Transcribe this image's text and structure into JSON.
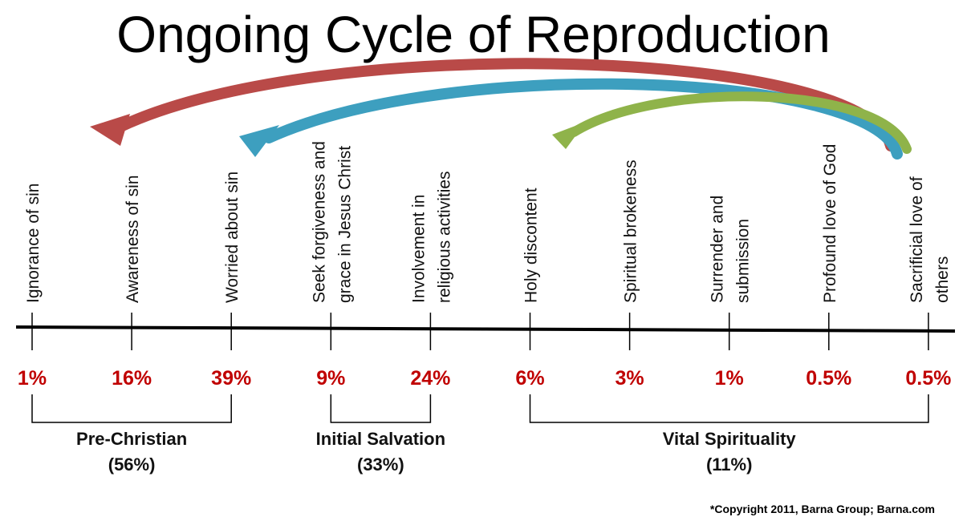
{
  "title": "Ongoing Cycle of Reproduction",
  "stages": [
    {
      "label": [
        "Ignorance of sin"
      ],
      "percent": "1%"
    },
    {
      "label": [
        "Awareness of sin"
      ],
      "percent": "16%"
    },
    {
      "label": [
        "Worried about sin"
      ],
      "percent": "39%"
    },
    {
      "label": [
        "Seek forgiveness and",
        "grace in Jesus Christ"
      ],
      "percent": "9%"
    },
    {
      "label": [
        "Involvement in",
        "religious activities"
      ],
      "percent": "24%"
    },
    {
      "label": [
        "Holy discontent"
      ],
      "percent": "6%"
    },
    {
      "label": [
        "Spiritual brokeness"
      ],
      "percent": "3%"
    },
    {
      "label": [
        "Surrender and",
        "submission"
      ],
      "percent": "1%"
    },
    {
      "label": [
        "Profound love of God"
      ],
      "percent": "0.5%"
    },
    {
      "label": [
        "Sacrificial love of",
        "others"
      ],
      "percent": "0.5%"
    }
  ],
  "groups": [
    {
      "name": "Pre-Christian",
      "percent": "(56%)",
      "from": 0,
      "to": 2
    },
    {
      "name": "Initial Salvation",
      "percent": "(33%)",
      "from": 3,
      "to": 4
    },
    {
      "name": "Vital Spirituality",
      "percent": "(11%)",
      "from": 5,
      "to": 9
    }
  ],
  "copyright": "*Copyright 2011,   Barna Group;   Barna.com"
}
